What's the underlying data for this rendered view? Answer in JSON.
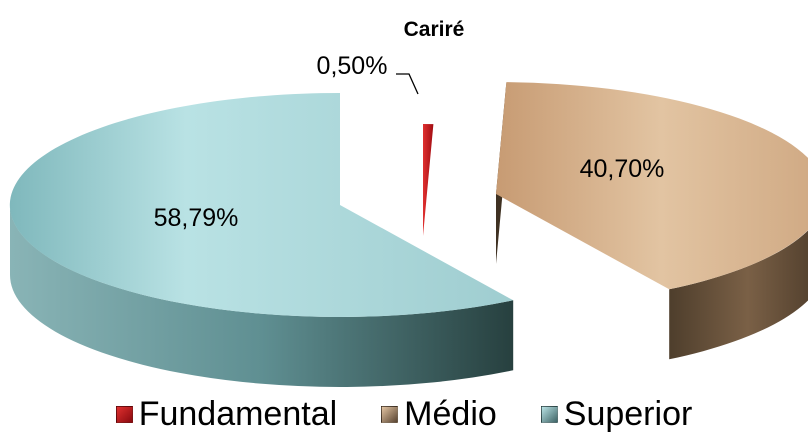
{
  "chart_data": {
    "type": "pie",
    "title": "",
    "subtitle": "Cariré",
    "slices": [
      {
        "label": "Fundamental",
        "value": 0.5,
        "display": "0,50%",
        "color": "#c8161d"
      },
      {
        "label": "Médio",
        "value": 40.7,
        "display": "40,70%",
        "color": "#d8b38d"
      },
      {
        "label": "Superior",
        "value": 58.79,
        "display": "58,79%",
        "color": "#a6d7da"
      }
    ],
    "legend_placement": "bottom",
    "style": "3d-exploded"
  }
}
